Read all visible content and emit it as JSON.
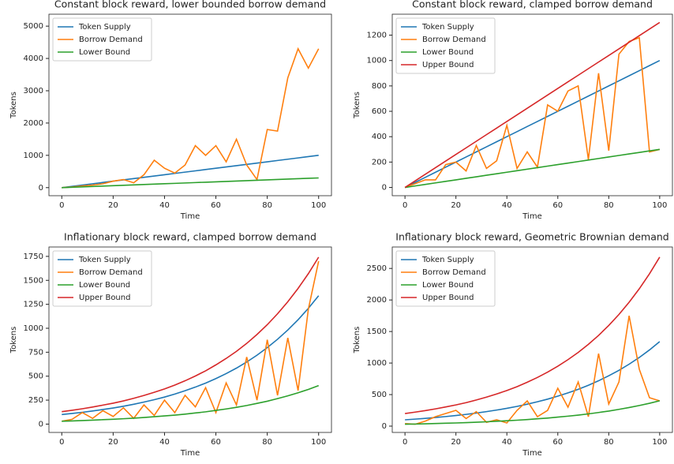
{
  "chart_data": [
    {
      "type": "line",
      "title": "Constant block reward, lower bounded borrow demand",
      "xlabel": "Time",
      "ylabel": "Tokens",
      "x": [
        0,
        4,
        8,
        12,
        16,
        20,
        24,
        28,
        32,
        36,
        40,
        44,
        48,
        52,
        56,
        60,
        64,
        68,
        72,
        76,
        80,
        84,
        88,
        92,
        96,
        100
      ],
      "xlim": [
        -5,
        105
      ],
      "ylim": [
        -250,
        5370
      ],
      "xticks": [
        0,
        20,
        40,
        60,
        80,
        100
      ],
      "yticks": [
        0,
        1000,
        2000,
        3000,
        4000,
        5000
      ],
      "grid": false,
      "legend": "upper left",
      "series": [
        {
          "name": "Token Supply",
          "color": "#1f77b4",
          "values": [
            0,
            40,
            80,
            120,
            160,
            200,
            240,
            280,
            320,
            360,
            400,
            440,
            480,
            520,
            560,
            600,
            640,
            680,
            720,
            760,
            800,
            840,
            880,
            920,
            960,
            1000
          ]
        },
        {
          "name": "Borrow Demand",
          "color": "#ff7f0e",
          "values": [
            0,
            20,
            50,
            80,
            120,
            200,
            250,
            150,
            400,
            850,
            600,
            450,
            700,
            1300,
            1000,
            1300,
            800,
            1500,
            700,
            250,
            1800,
            1750,
            3400,
            4300,
            3700,
            4300
          ]
        },
        {
          "name": "Lower Bound",
          "color": "#2ca02c",
          "values": [
            0,
            12,
            24,
            36,
            48,
            60,
            72,
            84,
            96,
            108,
            120,
            132,
            144,
            156,
            168,
            180,
            192,
            204,
            216,
            228,
            240,
            252,
            264,
            276,
            288,
            300
          ]
        }
      ]
    },
    {
      "type": "line",
      "title": "Constant block reward, clamped borrow demand",
      "xlabel": "Time",
      "ylabel": "Tokens",
      "x": [
        0,
        4,
        8,
        12,
        16,
        20,
        24,
        28,
        32,
        36,
        40,
        44,
        48,
        52,
        56,
        60,
        64,
        68,
        72,
        76,
        80,
        84,
        88,
        92,
        96,
        100
      ],
      "xlim": [
        -5,
        105
      ],
      "ylim": [
        -65,
        1365
      ],
      "xticks": [
        0,
        20,
        40,
        60,
        80,
        100
      ],
      "yticks": [
        0,
        200,
        400,
        600,
        800,
        1000,
        1200
      ],
      "grid": false,
      "legend": "upper left",
      "series": [
        {
          "name": "Token Supply",
          "color": "#1f77b4",
          "values": [
            0,
            40,
            80,
            120,
            160,
            200,
            240,
            280,
            320,
            360,
            400,
            440,
            480,
            520,
            560,
            600,
            640,
            680,
            720,
            760,
            800,
            840,
            880,
            920,
            960,
            1000
          ]
        },
        {
          "name": "Borrow Demand",
          "color": "#ff7f0e",
          "values": [
            0,
            30,
            60,
            60,
            180,
            200,
            130,
            330,
            150,
            210,
            490,
            150,
            280,
            160,
            650,
            600,
            760,
            800,
            220,
            900,
            290,
            1050,
            1150,
            1180,
            280,
            300
          ]
        },
        {
          "name": "Lower Bound",
          "color": "#2ca02c",
          "values": [
            0,
            12,
            24,
            36,
            48,
            60,
            72,
            84,
            96,
            108,
            120,
            132,
            144,
            156,
            168,
            180,
            192,
            204,
            216,
            228,
            240,
            252,
            264,
            276,
            288,
            300
          ]
        },
        {
          "name": "Upper Bound",
          "color": "#d62728",
          "values": [
            0,
            52,
            104,
            156,
            208,
            260,
            312,
            364,
            416,
            468,
            520,
            572,
            624,
            676,
            728,
            780,
            832,
            884,
            936,
            988,
            1040,
            1092,
            1144,
            1196,
            1248,
            1300
          ]
        }
      ]
    },
    {
      "type": "line",
      "title": "Inflationary block reward, clamped borrow demand",
      "xlabel": "Time",
      "ylabel": "Tokens",
      "x": [
        0,
        4,
        8,
        12,
        16,
        20,
        24,
        28,
        32,
        36,
        40,
        44,
        48,
        52,
        56,
        60,
        64,
        68,
        72,
        76,
        80,
        84,
        88,
        92,
        96,
        100
      ],
      "xlim": [
        -5,
        105
      ],
      "ylim": [
        -87,
        1848
      ],
      "xticks": [
        0,
        20,
        40,
        60,
        80,
        100
      ],
      "yticks": [
        0,
        250,
        500,
        750,
        1000,
        1250,
        1500,
        1750
      ],
      "grid": false,
      "legend": "upper left",
      "series": [
        {
          "name": "Token Supply",
          "color": "#1f77b4",
          "values": [
            100,
            111,
            123,
            137,
            152,
            168,
            186,
            207,
            230,
            255,
            282,
            313,
            348,
            386,
            428,
            475,
            527,
            584,
            648,
            719,
            798,
            885,
            982,
            1089,
            1208,
            1340
          ]
        },
        {
          "name": "Borrow Demand",
          "color": "#ff7f0e",
          "values": [
            30,
            50,
            120,
            60,
            140,
            80,
            170,
            60,
            200,
            90,
            250,
            120,
            300,
            180,
            380,
            120,
            430,
            200,
            700,
            250,
            880,
            300,
            900,
            350,
            1200,
            1700
          ]
        },
        {
          "name": "Lower Bound",
          "color": "#2ca02c",
          "values": [
            30,
            33,
            37,
            41,
            46,
            50,
            56,
            62,
            69,
            77,
            85,
            94,
            104,
            116,
            128,
            143,
            158,
            175,
            194,
            216,
            239,
            266,
            295,
            327,
            362,
            402
          ]
        },
        {
          "name": "Upper Bound",
          "color": "#d62728",
          "values": [
            130,
            144,
            160,
            178,
            198,
            218,
            242,
            269,
            299,
            332,
            367,
            407,
            452,
            502,
            556,
            618,
            685,
            759,
            842,
            935,
            1037,
            1151,
            1277,
            1416,
            1570,
            1742
          ]
        }
      ]
    },
    {
      "type": "line",
      "title": "Inflationary block reward, Geometric Brownian demand",
      "xlabel": "Time",
      "ylabel": "Tokens",
      "x": [
        0,
        4,
        8,
        12,
        16,
        20,
        24,
        28,
        32,
        36,
        40,
        44,
        48,
        52,
        56,
        60,
        64,
        68,
        72,
        76,
        80,
        84,
        88,
        92,
        96,
        100
      ],
      "xlim": [
        -5,
        105
      ],
      "ylim": [
        -100,
        2840
      ],
      "xticks": [
        0,
        20,
        40,
        60,
        80,
        100
      ],
      "yticks": [
        0,
        500,
        1000,
        1500,
        2000,
        2500
      ],
      "grid": false,
      "legend": "upper left",
      "series": [
        {
          "name": "Token Supply",
          "color": "#1f77b4",
          "values": [
            100,
            111,
            123,
            137,
            152,
            168,
            186,
            207,
            230,
            255,
            282,
            313,
            348,
            386,
            428,
            475,
            527,
            584,
            648,
            719,
            798,
            885,
            982,
            1089,
            1208,
            1340
          ]
        },
        {
          "name": "Borrow Demand",
          "color": "#ff7f0e",
          "values": [
            40,
            30,
            80,
            150,
            200,
            250,
            120,
            230,
            60,
            100,
            50,
            250,
            400,
            150,
            250,
            600,
            300,
            700,
            150,
            1150,
            350,
            700,
            1750,
            900,
            450,
            400
          ]
        },
        {
          "name": "Lower Bound",
          "color": "#2ca02c",
          "values": [
            30,
            33,
            37,
            41,
            46,
            50,
            56,
            62,
            69,
            77,
            85,
            94,
            104,
            116,
            128,
            143,
            158,
            175,
            194,
            216,
            239,
            266,
            295,
            327,
            362,
            402
          ]
        },
        {
          "name": "Upper Bound",
          "color": "#d62728",
          "values": [
            200,
            222,
            246,
            274,
            304,
            336,
            372,
            414,
            460,
            510,
            564,
            626,
            696,
            772,
            856,
            950,
            1054,
            1168,
            1296,
            1438,
            1596,
            1770,
            1964,
            2178,
            2416,
            2680
          ]
        }
      ]
    }
  ]
}
